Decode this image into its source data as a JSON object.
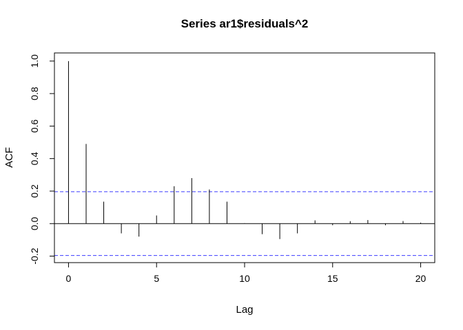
{
  "chart_data": {
    "type": "bar",
    "title": "Series  ar1$residuals^2",
    "xlabel": "Lag",
    "ylabel": "ACF",
    "xlim": [
      -0.8,
      20.8
    ],
    "ylim": [
      -0.24,
      1.05
    ],
    "x_ticks": [
      0,
      5,
      10,
      15,
      20
    ],
    "y_ticks": [
      -0.2,
      0.0,
      0.2,
      0.4,
      0.6,
      0.8,
      1.0
    ],
    "x": [
      0,
      1,
      2,
      3,
      4,
      5,
      6,
      7,
      8,
      9,
      10,
      11,
      12,
      13,
      14,
      15,
      16,
      17,
      18,
      19,
      20
    ],
    "values": [
      1.0,
      0.49,
      0.135,
      -0.06,
      -0.08,
      0.05,
      0.23,
      0.28,
      0.21,
      0.135,
      0.002,
      -0.065,
      -0.095,
      -0.06,
      0.02,
      -0.01,
      0.015,
      0.022,
      -0.01,
      0.016,
      0.006
    ],
    "confidence_bounds": [
      0.196,
      -0.196
    ],
    "zero_line": 0,
    "grid": false,
    "colors": {
      "bars": "#000000",
      "confidence": "#3b3bff",
      "axis": "#000000"
    }
  }
}
